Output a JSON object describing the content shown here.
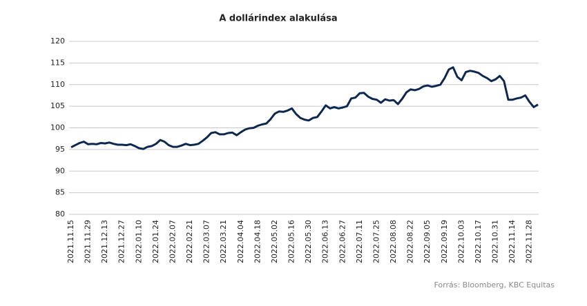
{
  "chart_data": {
    "type": "line",
    "title": "A dollárindex alakulása",
    "source": "Forrás: Bloomberg, KBC Equitas",
    "categories": [
      "2021.11.15",
      null,
      null,
      null,
      "2021.11.29",
      null,
      null,
      null,
      "2021.12.13",
      null,
      null,
      null,
      "2021.12.27",
      null,
      null,
      null,
      "2022.01.10",
      null,
      null,
      null,
      "2022.01.24",
      null,
      null,
      null,
      "2022.02.07",
      null,
      null,
      null,
      "2022.02.21",
      null,
      null,
      null,
      "2022.03.07",
      null,
      null,
      null,
      "2022.03.21",
      null,
      null,
      null,
      "2022.04.04",
      null,
      null,
      null,
      "2022.04.18",
      null,
      null,
      null,
      "2022.05.02",
      null,
      null,
      null,
      "2022.05.16",
      null,
      null,
      null,
      "2022.05.30",
      null,
      null,
      null,
      "2022.06.13",
      null,
      null,
      null,
      "2022.06.27",
      null,
      null,
      null,
      "2022.07.11",
      null,
      null,
      null,
      "2022.07.25",
      null,
      null,
      null,
      "2022.08.08",
      null,
      null,
      null,
      "2022.08.22",
      null,
      null,
      null,
      "2022.09.05",
      null,
      null,
      null,
      "2022.09.19",
      null,
      null,
      null,
      "2022.10.03",
      null,
      null,
      null,
      "2022.10.17",
      null,
      null,
      null,
      "2022.10.31",
      null,
      null,
      null,
      "2022.11.14",
      null,
      null,
      null,
      "2022.11.28",
      null,
      null
    ],
    "values": [
      95.5,
      96,
      96.5,
      96.8,
      96.2,
      96.3,
      96.2,
      96.5,
      96.4,
      96.6,
      96.3,
      96.1,
      96.1,
      96.0,
      96.2,
      95.8,
      95.3,
      95.1,
      95.6,
      95.8,
      96.3,
      97.2,
      96.8,
      96.0,
      95.6,
      95.6,
      95.9,
      96.3,
      96.0,
      96.1,
      96.3,
      97.0,
      97.8,
      98.8,
      99.0,
      98.5,
      98.5,
      98.8,
      98.9,
      98.3,
      99.0,
      99.6,
      99.9,
      100.0,
      100.5,
      100.8,
      101.0,
      102.0,
      103.3,
      103.8,
      103.7,
      104.0,
      104.5,
      103.2,
      102.3,
      101.9,
      101.7,
      102.3,
      102.5,
      103.8,
      105.2,
      104.5,
      104.8,
      104.5,
      104.7,
      105.0,
      106.8,
      107.0,
      108.0,
      108.1,
      107.2,
      106.7,
      106.5,
      105.8,
      106.6,
      106.3,
      106.4,
      105.5,
      106.7,
      108.2,
      108.9,
      108.7,
      109.0,
      109.6,
      109.8,
      109.5,
      109.7,
      110.0,
      111.5,
      113.5,
      114.0,
      111.8,
      111.0,
      112.9,
      113.2,
      113.0,
      112.7,
      112.0,
      111.5,
      110.8,
      111.2,
      112.0,
      110.8,
      106.5,
      106.5,
      106.8,
      107.0,
      107.5,
      106.0,
      104.8,
      105.4
    ],
    "color": "#0d2850",
    "ylim": [
      80,
      120
    ],
    "yticks": [
      80,
      85,
      90,
      95,
      100,
      105,
      110,
      115,
      120
    ],
    "grid": true
  }
}
